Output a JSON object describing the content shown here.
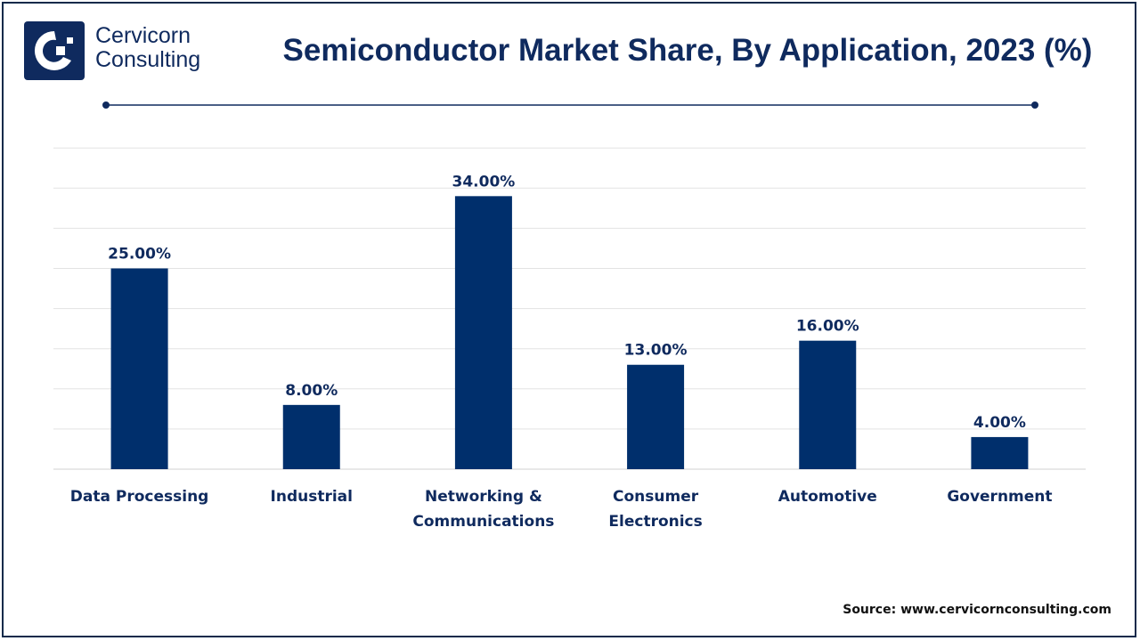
{
  "brand": {
    "name_line1": "Cervicorn",
    "name_line2": "Consulting",
    "logo_icon": "cervicorn-logo-icon"
  },
  "title": "Semiconductor Market Share, By Application, 2023 (%)",
  "source": "Source: www.cervicornconsulting.com",
  "colors": {
    "bar": "#002f6c",
    "text": "#0f2a5e",
    "grid": "#e3e3e3",
    "border": "#0f2a4a"
  },
  "chart_data": {
    "type": "bar",
    "title": "Semiconductor Market Share, By Application, 2023 (%)",
    "xlabel": "",
    "ylabel": "",
    "ylim": [
      0,
      40
    ],
    "grid": true,
    "categories": [
      [
        "Data Processing"
      ],
      [
        "Industrial"
      ],
      [
        "Networking &",
        "Communications"
      ],
      [
        "Consumer",
        "Electronics"
      ],
      [
        "Automotive"
      ],
      [
        "Government"
      ]
    ],
    "values": [
      25,
      8,
      34,
      13,
      16,
      4
    ],
    "value_labels": [
      "25.00%",
      "8.00%",
      "34.00%",
      "13.00%",
      "16.00%",
      "4.00%"
    ]
  }
}
